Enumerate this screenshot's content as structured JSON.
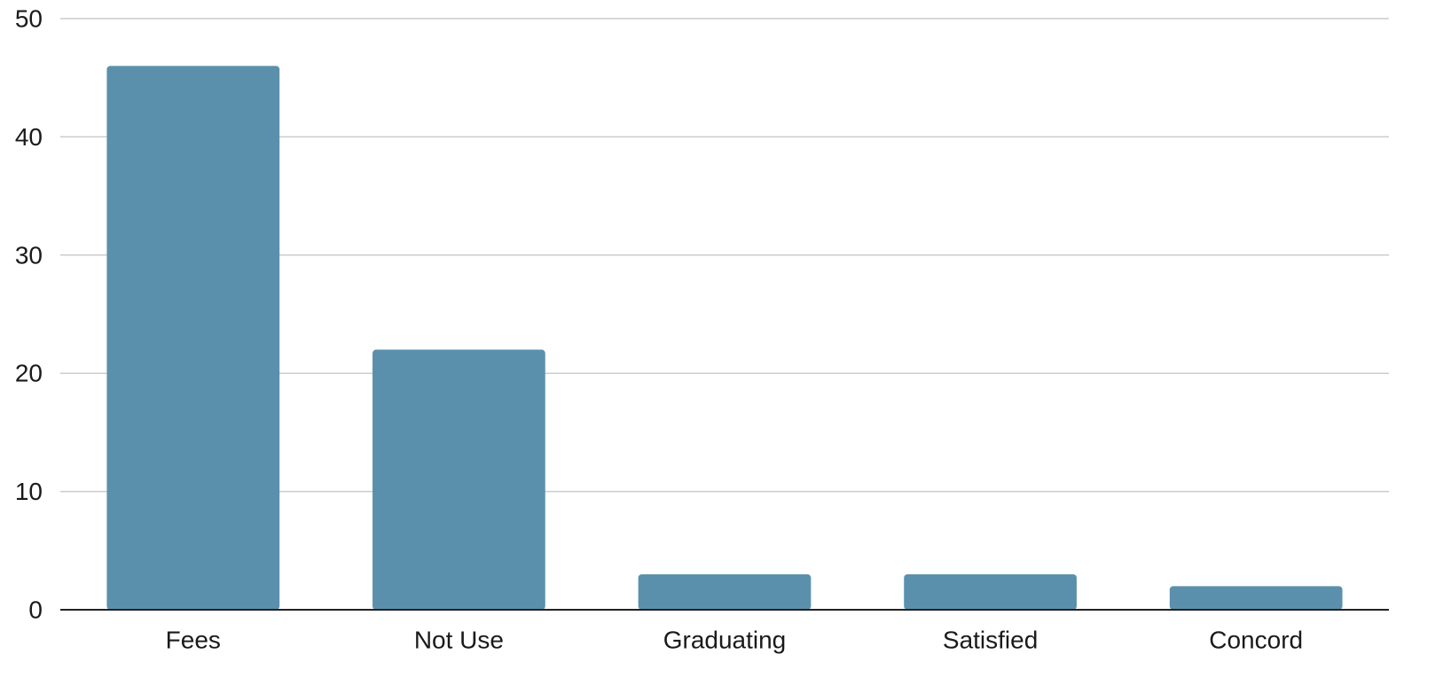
{
  "chart_data": {
    "type": "bar",
    "categories": [
      "Fees",
      "Not Use",
      "Graduating",
      "Satisfied",
      "Concord"
    ],
    "values": [
      46,
      22,
      3,
      3,
      2
    ],
    "title": "",
    "xlabel": "",
    "ylabel": "",
    "ylim": [
      0,
      50
    ],
    "yticks": [
      0,
      10,
      20,
      30,
      40,
      50
    ],
    "grid": true,
    "legend": "none",
    "bar_color": "#5b90ad"
  }
}
